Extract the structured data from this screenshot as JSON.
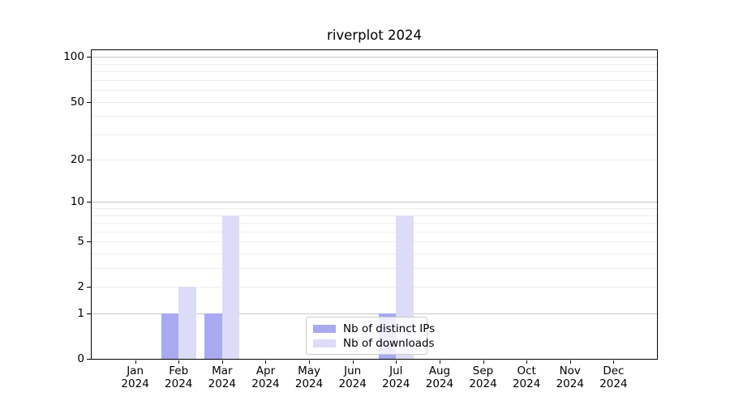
{
  "title": "riverplot 2024",
  "legend": {
    "items": [
      {
        "label": "Nb of distinct IPs",
        "color": "#a9a9f1"
      },
      {
        "label": "Nb of downloads",
        "color": "#dcdcf8"
      }
    ],
    "position": "lower center"
  },
  "chart_data": {
    "type": "bar",
    "title": "riverplot 2024",
    "categories": [
      "Jan 2024",
      "Feb 2024",
      "Mar 2024",
      "Apr 2024",
      "May 2024",
      "Jun 2024",
      "Jul 2024",
      "Aug 2024",
      "Sep 2024",
      "Oct 2024",
      "Nov 2024",
      "Dec 2024"
    ],
    "series": [
      {
        "name": "Nb of distinct IPs",
        "color": "#a9a9f1",
        "values": [
          0,
          1,
          1,
          0,
          0,
          0,
          1,
          0,
          0,
          0,
          0,
          0
        ]
      },
      {
        "name": "Nb of downloads",
        "color": "#dcdcf8",
        "values": [
          0,
          2,
          8,
          0,
          0,
          0,
          8,
          0,
          0,
          0,
          0,
          0
        ]
      }
    ],
    "xlabel": "",
    "ylabel": "",
    "yscale": "log1p",
    "ylim": [
      0,
      111
    ],
    "y_ticks": [
      0,
      1,
      2,
      5,
      10,
      20,
      50,
      100
    ],
    "y_major_gridlines": [
      1,
      10,
      100
    ],
    "y_minor_gridlines": [
      2,
      3,
      4,
      5,
      6,
      7,
      8,
      9,
      20,
      30,
      40,
      50,
      60,
      70,
      80,
      90
    ],
    "grid": true,
    "legend_position": "lower center"
  },
  "colors": {
    "background": "#ffffff",
    "spine": "#000000",
    "grid_major": "#c7c7c7",
    "grid_minor": "#ededed",
    "legend_border": "#cccccc",
    "text": "#000000"
  }
}
